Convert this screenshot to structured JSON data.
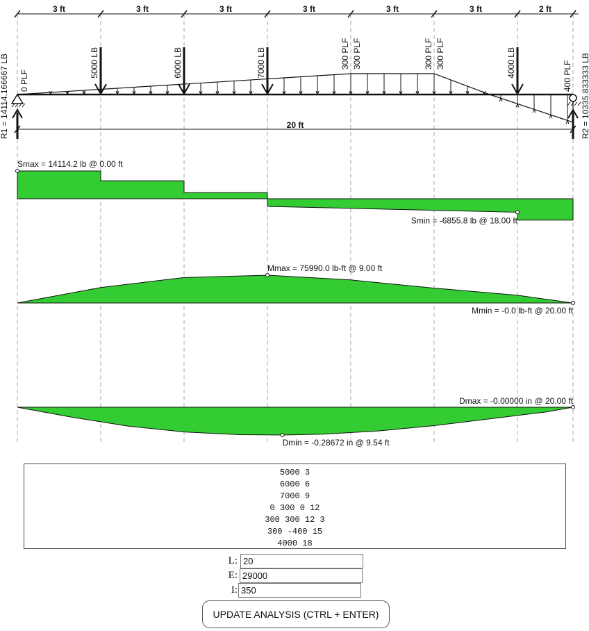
{
  "beam": {
    "span_label": "20 ft",
    "segments": [
      {
        "label": "3 ft",
        "x": [
          0,
          3
        ]
      },
      {
        "label": "3 ft",
        "x": [
          3,
          6
        ]
      },
      {
        "label": "3 ft",
        "x": [
          6,
          9
        ]
      },
      {
        "label": "3 ft",
        "x": [
          9,
          12
        ]
      },
      {
        "label": "3 ft",
        "x": [
          12,
          15
        ]
      },
      {
        "label": "3 ft",
        "x": [
          15,
          18
        ]
      },
      {
        "label": "2 ft",
        "x": [
          18,
          20
        ]
      }
    ],
    "point_loads": [
      {
        "label": "5000 LB",
        "x": 3
      },
      {
        "label": "6000 LB",
        "x": 6
      },
      {
        "label": "7000 LB",
        "x": 9
      },
      {
        "label": "4000 LB",
        "x": 18
      }
    ],
    "distributed_labels": [
      {
        "label": "0 PLF",
        "x": 0
      },
      {
        "label": "300 PLF",
        "x": 12,
        "side": "left"
      },
      {
        "label": "300 PLF",
        "x": 12,
        "side": "right"
      },
      {
        "label": "300 PLF",
        "x": 15,
        "side": "left"
      },
      {
        "label": "300 PLF",
        "x": 15,
        "side": "right"
      },
      {
        "label": "400 PLF",
        "x": 20
      }
    ],
    "load_profile": [
      [
        0,
        0
      ],
      [
        12,
        300
      ],
      [
        15,
        300
      ],
      [
        17,
        0
      ],
      [
        20,
        -400
      ]
    ],
    "reactions": {
      "left": "R1 = 14114.166667 LB",
      "right": "R2 = 10335.833333 LB"
    }
  },
  "shear": {
    "points": [
      [
        0,
        14114.2
      ],
      [
        3,
        14114.2
      ],
      [
        3,
        9114.2
      ],
      [
        6,
        9114.2
      ],
      [
        6,
        3114.2
      ],
      [
        9,
        3114.2
      ],
      [
        9,
        -3885.8
      ],
      [
        18,
        -6855.8
      ],
      [
        18,
        -10855.8
      ],
      [
        20,
        -10855.8
      ]
    ],
    "max_label": "Smax = 14114.2 lb @ 0.00 ft",
    "min_label": "Smin = -6855.8 lb @ 18.00 ft",
    "max_x": 0,
    "max_val": 14114.2,
    "min_x": 18,
    "min_val": -6855.8
  },
  "moment": {
    "points": [
      [
        0,
        0
      ],
      [
        3,
        42343
      ],
      [
        6,
        69685
      ],
      [
        9,
        75990
      ],
      [
        12,
        63125
      ],
      [
        15,
        40700
      ],
      [
        18,
        21200
      ],
      [
        20,
        0
      ]
    ],
    "max_label": "Mmax = 75990.0 lb-ft @ 9.00 ft",
    "min_label": "Mmin = -0.0 lb-ft @ 20.00 ft",
    "max_x": 9,
    "max_val": 75990.0,
    "min_x": 20,
    "min_val": 0
  },
  "deflection": {
    "points": [
      [
        0,
        0
      ],
      [
        2,
        -0.105
      ],
      [
        4,
        -0.195
      ],
      [
        6,
        -0.255
      ],
      [
        8,
        -0.283
      ],
      [
        9.54,
        -0.28672
      ],
      [
        11,
        -0.278
      ],
      [
        13,
        -0.245
      ],
      [
        15,
        -0.19
      ],
      [
        17,
        -0.12
      ],
      [
        19,
        -0.05
      ],
      [
        20,
        0
      ]
    ],
    "max_label": "Dmax = -0.00000 in @ 20.00 ft",
    "min_label": "Dmin = -0.28672 in @ 9.54 ft",
    "max_x": 20,
    "max_val": 0,
    "min_x": 9.54,
    "min_val": -0.28672
  },
  "loads_text": [
    "5000 3",
    "6000 6",
    "7000 9",
    "0 300 0 12",
    "300 300 12 3",
    "300 -400 15",
    "4000 18"
  ],
  "inputs": {
    "L": {
      "label": "L:",
      "value": "20"
    },
    "E": {
      "label": "E:",
      "value": "29000"
    },
    "I": {
      "label": "I:",
      "value": "350"
    }
  },
  "update_button": {
    "label": "UPDATE ANALYSIS (CTRL + ENTER)"
  },
  "colors": {
    "fill": "#33cc33",
    "line": "#111111",
    "grid": "#aaaaaa"
  }
}
